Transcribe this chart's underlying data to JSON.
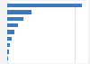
{
  "values": [
    220000,
    72000,
    48000,
    32000,
    20000,
    13000,
    8000,
    5000,
    3000
  ],
  "bar_color": "#3a7abf",
  "background_color": "#f2f2f2",
  "plot_bg_color": "#ffffff",
  "grid_color": "#cccccc",
  "xlim": [
    0,
    240000
  ],
  "bar_height": 0.55
}
